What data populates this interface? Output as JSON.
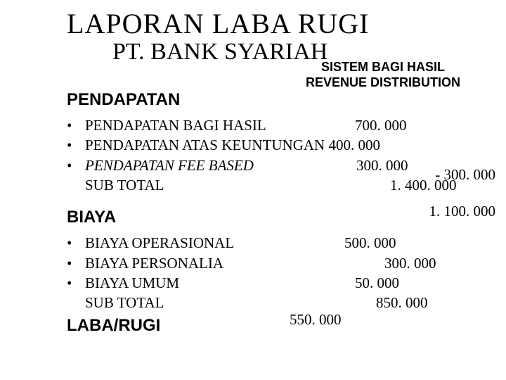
{
  "title_main": "LAPORAN LABA RUGI",
  "title_sub": "PT. BANK SYARIAH",
  "system_label_line1": "SISTEM BAGI HASIL",
  "system_label_line2": "REVENUE DISTRIBUTION",
  "sections": {
    "pendapatan": {
      "header": "PENDAPATAN",
      "items": [
        {
          "bullet": "•",
          "label": "PENDAPATAN BAGI HASIL",
          "value": "700. 000",
          "value_left": "410px"
        },
        {
          "bullet": "•",
          "label": "PENDAPATAN ATAS KEUNTUNGAN 400. 000",
          "value": "",
          "value_left": ""
        },
        {
          "bullet": "•",
          "label": "PENDAPATAN FEE BASED",
          "italic": true,
          "value": "300. 000",
          "value_left": "412px"
        },
        {
          "bullet": "",
          "label": "SUB TOTAL",
          "value": "1. 400. 000",
          "value_left": "460px"
        }
      ]
    },
    "biaya": {
      "header": "BIAYA",
      "items": [
        {
          "bullet": "•",
          "label": "BIAYA OPERASIONAL",
          "value": "500. 000",
          "value_left": "395px"
        },
        {
          "bullet": "•",
          "label": "BIAYA PERSONALIA",
          "value": "300. 000",
          "value_left": "452px"
        },
        {
          "bullet": "•",
          "label": "BIAYA UMUM",
          "value": "50. 000",
          "value_left": "410px"
        },
        {
          "bullet": "",
          "label": "SUB TOTAL",
          "value": "850. 000",
          "value_left": "440px"
        }
      ]
    },
    "laba": {
      "header": "LABA/RUGI",
      "value": "550. 000",
      "value_left": "412px"
    }
  },
  "right_notes": {
    "minus": "- 300. 000",
    "total1": "1. 100. 000"
  }
}
